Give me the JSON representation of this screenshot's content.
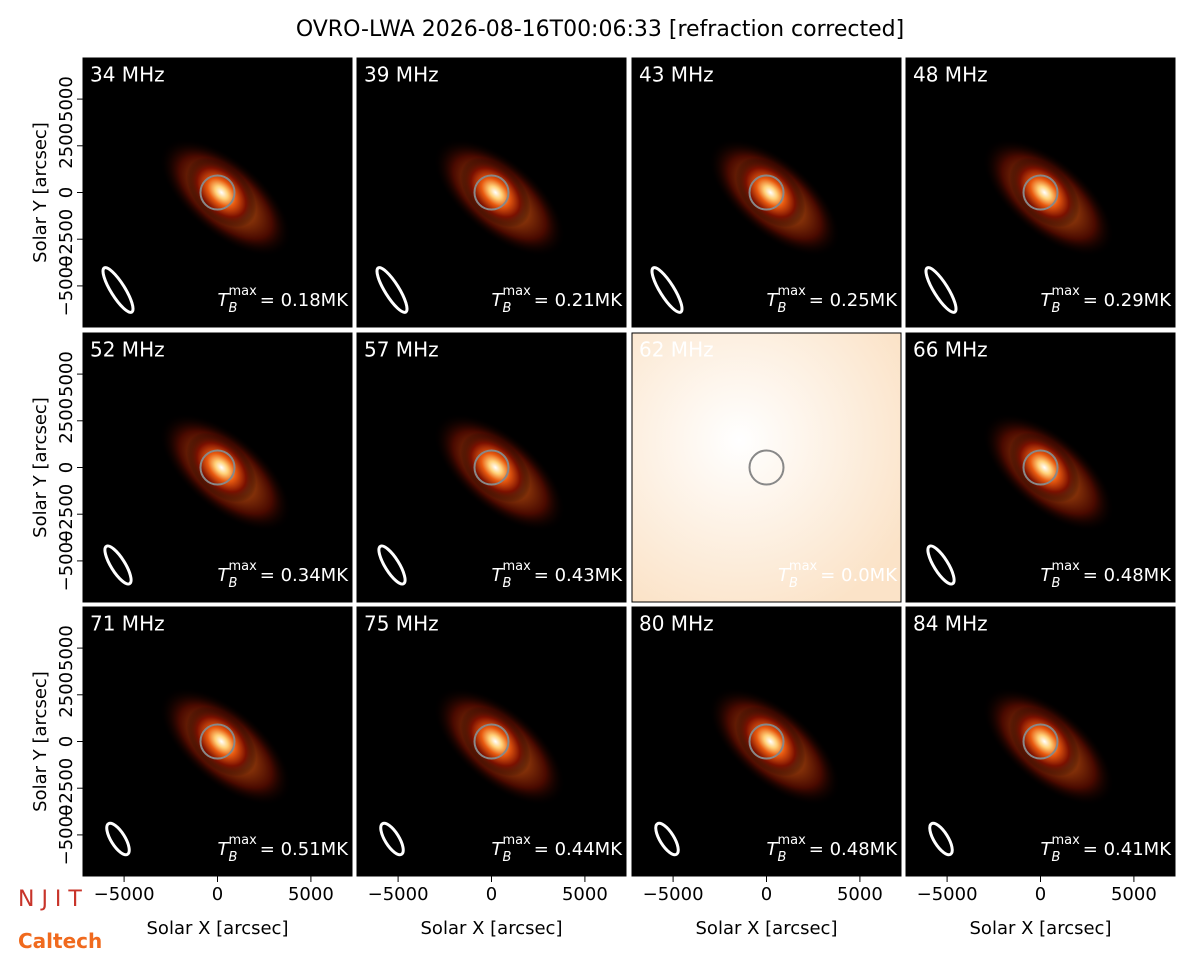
{
  "chart_data": {
    "type": "image_grid",
    "title": "OVRO-LWA 2026-08-16T00:06:33 [refraction corrected]",
    "xlabel": "Solar X [arcsec]",
    "ylabel": "Solar Y [arcsec]",
    "xlim": [
      -7200,
      7200
    ],
    "ylim": [
      -7200,
      7200
    ],
    "xticks": [
      {
        "value": -5000,
        "label": "−5000"
      },
      0,
      5000
    ],
    "yticks": [
      {
        "value": -5000,
        "label": "−5000"
      },
      {
        "value": -2500,
        "label": "−2500"
      },
      0,
      2500,
      5000
    ],
    "tb_symbol": {
      "main": "T",
      "sub": "B",
      "sup": "max"
    },
    "panels": [
      {
        "label": "34 MHz",
        "tmax": "= 0.18MK",
        "color": "#000000"
      },
      {
        "label": "39 MHz",
        "tmax": "= 0.21MK",
        "color": "#000000"
      },
      {
        "label": "43 MHz",
        "tmax": "= 0.25MK",
        "color": "#000000"
      },
      {
        "label": "48 MHz",
        "tmax": "= 0.29MK",
        "color": "#000000"
      },
      {
        "label": "52 MHz",
        "tmax": "= 0.34MK",
        "color": "#000000"
      },
      {
        "label": "57 MHz",
        "tmax": "= 0.43MK",
        "color": "#000000"
      },
      {
        "label": "62 MHz",
        "tmax": "= 0.0MK",
        "color": "#fcefe0"
      },
      {
        "label": "66 MHz",
        "tmax": "= 0.48MK",
        "color": "#000000"
      },
      {
        "label": "71 MHz",
        "tmax": "= 0.51MK",
        "color": "#000000"
      },
      {
        "label": "75 MHz",
        "tmax": "= 0.44MK",
        "color": "#000000"
      },
      {
        "label": "80 MHz",
        "tmax": "= 0.48MK",
        "color": "#000000"
      },
      {
        "label": "84 MHz",
        "tmax": "= 0.41MK",
        "color": "#000000"
      }
    ],
    "logos": [
      "N J I T",
      "Caltech"
    ]
  }
}
